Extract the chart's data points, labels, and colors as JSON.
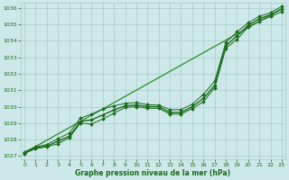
{
  "hours": [
    0,
    1,
    2,
    3,
    4,
    5,
    6,
    7,
    8,
    9,
    10,
    11,
    12,
    13,
    14,
    15,
    16,
    17,
    18,
    19,
    20,
    21,
    22,
    23
  ],
  "line_main": [
    1027.2,
    1027.5,
    1027.6,
    1027.9,
    1028.2,
    1029.1,
    1029.2,
    1029.5,
    1029.8,
    1030.05,
    1030.1,
    1030.0,
    1030.0,
    1029.65,
    1029.65,
    1030.0,
    1030.5,
    1031.3,
    1033.7,
    1034.3,
    1034.95,
    1035.35,
    1035.6,
    1035.95
  ],
  "line_upper": [
    1027.25,
    1027.55,
    1027.7,
    1028.05,
    1028.4,
    1029.3,
    1029.55,
    1029.85,
    1030.05,
    1030.2,
    1030.25,
    1030.12,
    1030.1,
    1029.82,
    1029.82,
    1030.15,
    1030.75,
    1031.55,
    1033.9,
    1034.55,
    1035.1,
    1035.5,
    1035.72,
    1036.1
  ],
  "line_lower": [
    1027.15,
    1027.45,
    1027.55,
    1027.75,
    1028.1,
    1029.0,
    1028.95,
    1029.25,
    1029.6,
    1029.95,
    1030.0,
    1029.9,
    1029.9,
    1029.55,
    1029.55,
    1029.88,
    1030.3,
    1031.15,
    1033.55,
    1034.1,
    1034.85,
    1035.2,
    1035.48,
    1035.78
  ],
  "line_trend_x": [
    0,
    23
  ],
  "line_trend_y": [
    1027.2,
    1035.95
  ],
  "bg_color": "#cce8e8",
  "grid_color": "#aacccc",
  "line_color": "#1a6b1a",
  "trend_color": "#2d8b2d",
  "xlabel": "Graphe pression niveau de la mer (hPa)",
  "xlabel_color": "#1a6b1a",
  "tick_color": "#1a6b1a",
  "ylim": [
    1026.8,
    1036.3
  ],
  "xlim": [
    -0.3,
    23.3
  ],
  "yticks": [
    1027,
    1028,
    1029,
    1030,
    1031,
    1032,
    1033,
    1034,
    1035,
    1036
  ],
  "xticks": [
    0,
    1,
    2,
    3,
    4,
    5,
    6,
    7,
    8,
    9,
    10,
    11,
    12,
    13,
    14,
    15,
    16,
    17,
    18,
    19,
    20,
    21,
    22,
    23
  ]
}
